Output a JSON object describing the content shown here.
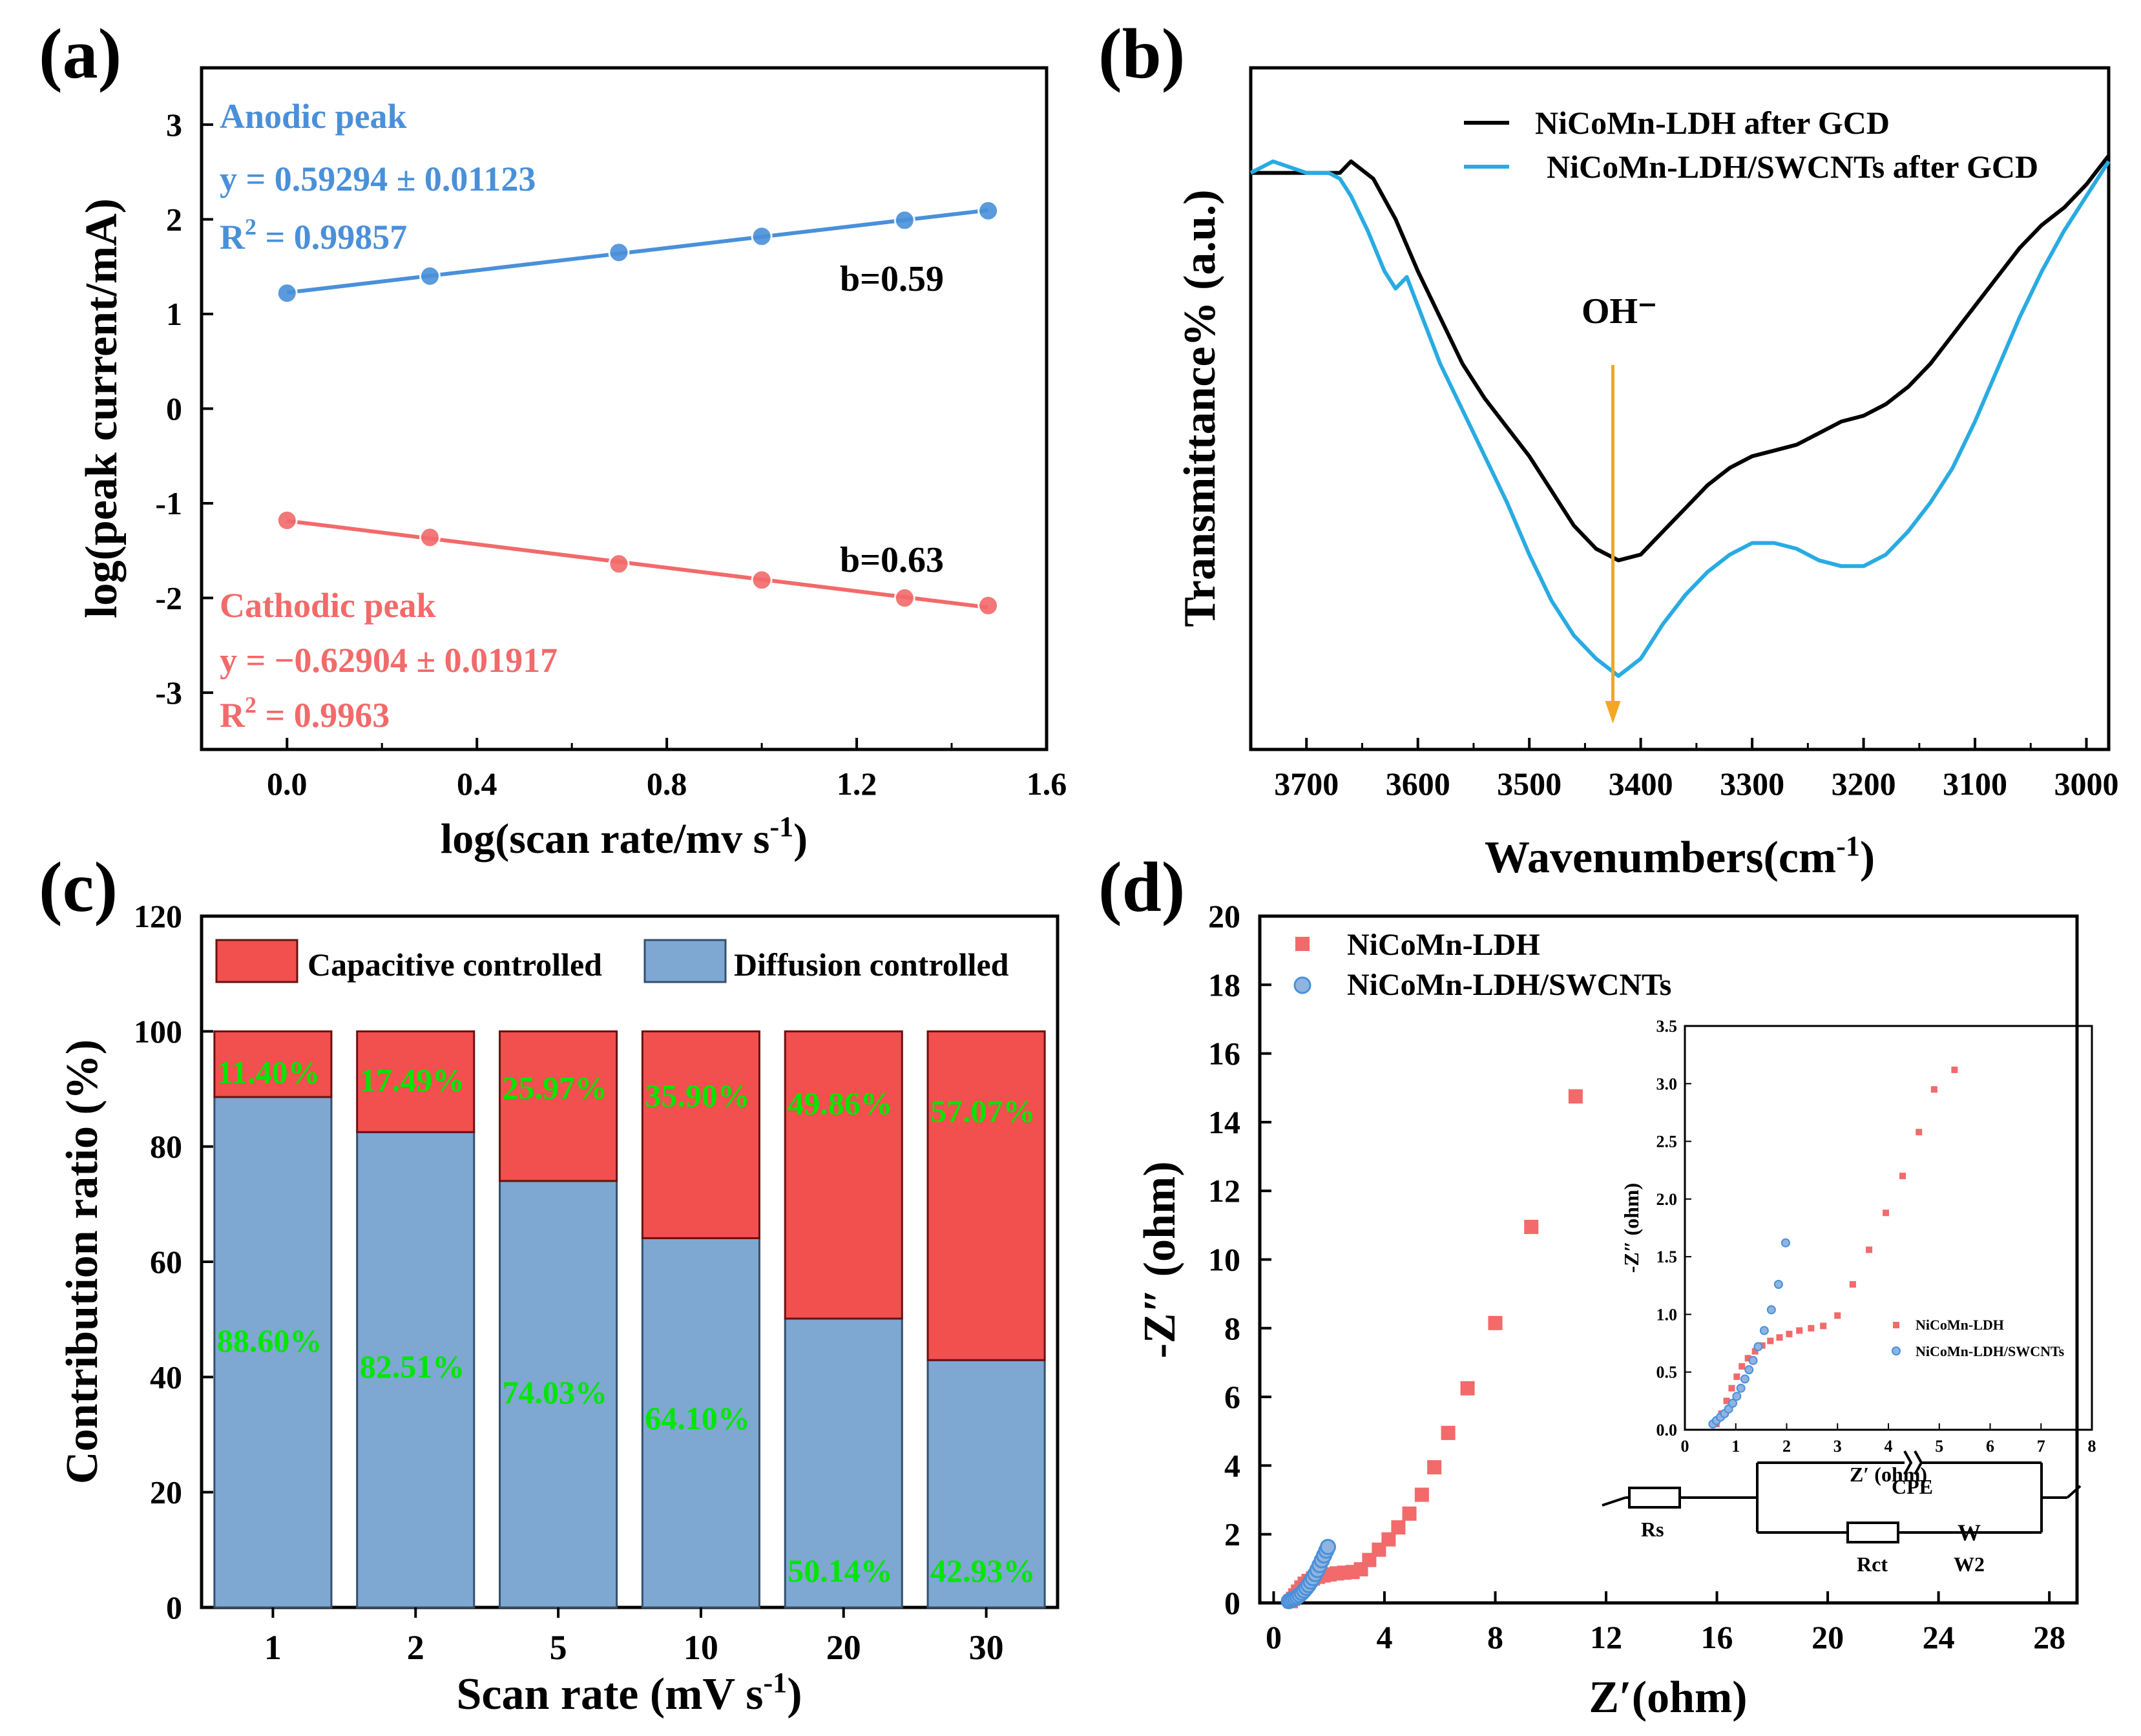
{
  "colors": {
    "blue": "#4a90d9",
    "red": "#f26a6a",
    "black": "#000000",
    "cyan": "#29abe2",
    "orange": "#f5a623",
    "green": "#00e600",
    "bar_blue": "#7ea7d2",
    "bar_red": "#f24f4f"
  },
  "chart_data": [
    {
      "panel": "(a)",
      "type": "line",
      "xlabel": "log(scan rate/mv s",
      "xlabel_sup": "-1",
      "xlabel_close": ")",
      "ylabel": "log(peak current/mA)",
      "xlim": [
        -0.18,
        1.6
      ],
      "ylim": [
        -3.6,
        3.6
      ],
      "xticks": [
        "0.0",
        "0.4",
        "0.8",
        "1.2",
        "1.6"
      ],
      "yticks": [
        "-3",
        "-2",
        "-1",
        "0",
        "1",
        "2",
        "3"
      ],
      "series": [
        {
          "name": "Anodic peak",
          "x": [
            0,
            0.301,
            0.699,
            1.0,
            1.301,
            1.477
          ],
          "y": [
            1.22,
            1.4,
            1.65,
            1.82,
            1.99,
            2.09
          ]
        },
        {
          "name": "Cathodic peak",
          "x": [
            0,
            0.301,
            0.699,
            1.0,
            1.301,
            1.477
          ],
          "y": [
            -1.18,
            -1.36,
            -1.64,
            -1.81,
            -2.0,
            -2.08
          ]
        }
      ],
      "annotations": {
        "anodic_title": "Anodic peak",
        "anodic_eq": "y = 0.59294 ± 0.01123",
        "anodic_r2": "R",
        "anodic_r2_val": " = 0.99857",
        "cathodic_title": "Cathodic peak",
        "cathodic_eq": "y = −0.62904 ± 0.01917",
        "cathodic_r2": "R",
        "cathodic_r2_val": " = 0.9963",
        "r2_sup": "2",
        "b_anodic": "b=0.59",
        "b_cathodic": "b=0.63"
      }
    },
    {
      "panel": "(b)",
      "type": "line",
      "xlabel": "Wavenumbers",
      "xlabel_unit": "(cm",
      "xlabel_sup": "-1",
      "xlabel_close": ")",
      "ylabel": "Transmittance% (a.u.)",
      "xlim": [
        3750,
        2980
      ],
      "xticks": [
        "3700",
        "3600",
        "3500",
        "3400",
        "3300",
        "3200",
        "3100",
        "3000"
      ],
      "xtick_values": [
        3700,
        3600,
        3500,
        3400,
        3300,
        3200,
        3100,
        3000
      ],
      "series": [
        {
          "name": "NiCoMn-LDH after GCD",
          "x": [
            3750,
            3720,
            3690,
            3670,
            3660,
            3640,
            3620,
            3600,
            3580,
            3560,
            3540,
            3520,
            3500,
            3480,
            3460,
            3440,
            3420,
            3400,
            3380,
            3360,
            3340,
            3320,
            3300,
            3280,
            3260,
            3240,
            3220,
            3200,
            3180,
            3160,
            3140,
            3120,
            3100,
            3080,
            3060,
            3040,
            3020,
            3000,
            2980
          ],
          "y": [
            0.93,
            0.93,
            0.93,
            0.93,
            0.95,
            0.92,
            0.85,
            0.76,
            0.68,
            0.6,
            0.54,
            0.49,
            0.44,
            0.38,
            0.32,
            0.28,
            0.26,
            0.27,
            0.31,
            0.35,
            0.39,
            0.42,
            0.44,
            0.45,
            0.46,
            0.48,
            0.5,
            0.51,
            0.53,
            0.56,
            0.6,
            0.65,
            0.7,
            0.75,
            0.8,
            0.84,
            0.87,
            0.91,
            0.96
          ]
        },
        {
          "name": "NiCoMn-LDH/SWCNTs after GCD",
          "x": [
            3750,
            3730,
            3700,
            3680,
            3670,
            3660,
            3645,
            3630,
            3620,
            3610,
            3600,
            3580,
            3560,
            3540,
            3520,
            3500,
            3480,
            3460,
            3440,
            3420,
            3400,
            3380,
            3360,
            3340,
            3320,
            3300,
            3280,
            3260,
            3240,
            3220,
            3200,
            3180,
            3160,
            3140,
            3120,
            3100,
            3080,
            3060,
            3040,
            3020,
            3000,
            2980
          ],
          "y": [
            0.93,
            0.95,
            0.93,
            0.93,
            0.92,
            0.89,
            0.83,
            0.76,
            0.73,
            0.75,
            0.7,
            0.6,
            0.52,
            0.44,
            0.36,
            0.27,
            0.19,
            0.13,
            0.09,
            0.06,
            0.09,
            0.15,
            0.2,
            0.24,
            0.27,
            0.29,
            0.29,
            0.28,
            0.26,
            0.25,
            0.25,
            0.27,
            0.31,
            0.36,
            0.42,
            0.5,
            0.59,
            0.68,
            0.76,
            0.83,
            0.89,
            0.95
          ]
        }
      ],
      "annotation": "OH⁻",
      "arrow_x": 3425
    },
    {
      "panel": "(c)",
      "type": "bar",
      "stacked": true,
      "xlabel": "Scan rate (mV s",
      "xlabel_sup": "-1",
      "xlabel_close": ")",
      "ylabel": "Contribution ratio (%)",
      "ylim": [
        0,
        120
      ],
      "yticks": [
        "0",
        "20",
        "40",
        "60",
        "80",
        "100",
        "120"
      ],
      "categories": [
        "1",
        "2",
        "5",
        "10",
        "20",
        "30"
      ],
      "series": [
        {
          "name": "Diffusion controlled",
          "values": [
            88.6,
            82.51,
            74.03,
            64.1,
            50.14,
            42.93
          ],
          "labels": [
            "88.60%",
            "82.51%",
            "74.03%",
            "64.10%",
            "50.14%",
            "42.93%"
          ]
        },
        {
          "name": "Capacitive controlled",
          "values": [
            11.4,
            17.49,
            25.97,
            35.9,
            49.86,
            57.07
          ],
          "labels": [
            "11.40%",
            "17.49%",
            "25.97%",
            "35.90%",
            "49.86%",
            "57.07%"
          ]
        }
      ]
    },
    {
      "panel": "(d)",
      "type": "scatter",
      "xlabel": "Z′(ohm)",
      "ylabel": "-Z″ (ohm)",
      "xlim": [
        -0.5,
        29
      ],
      "ylim": [
        0,
        20
      ],
      "xticks": [
        "0",
        "4",
        "8",
        "12",
        "16",
        "20",
        "24",
        "28"
      ],
      "yticks": [
        "0",
        "2",
        "4",
        "6",
        "8",
        "10",
        "12",
        "14",
        "16",
        "18",
        "20"
      ],
      "series": [
        {
          "name": "NiCoMn-LDH",
          "x": [
            0.62,
            0.7,
            0.78,
            0.88,
            1.0,
            1.12,
            1.26,
            1.42,
            1.6,
            1.8,
            2.02,
            2.28,
            2.55,
            2.85,
            3.15,
            3.45,
            3.8,
            4.15,
            4.5,
            4.9,
            5.35,
            5.8,
            6.3,
            7.0,
            8.0,
            9.3,
            10.9
          ],
          "y": [
            0.05,
            0.12,
            0.22,
            0.33,
            0.45,
            0.56,
            0.64,
            0.71,
            0.76,
            0.8,
            0.83,
            0.86,
            0.88,
            0.9,
            0.98,
            1.25,
            1.55,
            1.85,
            2.2,
            2.6,
            3.15,
            3.95,
            4.95,
            6.25,
            8.15,
            10.95,
            14.75
          ]
        },
        {
          "name": "NiCoMn-LDH/SWCNTs",
          "x": [
            0.55,
            0.62,
            0.7,
            0.78,
            0.86,
            0.94,
            1.02,
            1.1,
            1.18,
            1.26,
            1.34,
            1.42,
            1.5,
            1.58,
            1.66,
            1.74,
            1.82,
            1.9,
            1.96
          ],
          "y": [
            0.05,
            0.08,
            0.11,
            0.14,
            0.18,
            0.23,
            0.29,
            0.36,
            0.44,
            0.52,
            0.62,
            0.72,
            0.84,
            0.96,
            1.1,
            1.24,
            1.38,
            1.52,
            1.63
          ]
        }
      ],
      "inset": {
        "xlabel": "Z′ (ohm)",
        "ylabel": "-Z″ (ohm)",
        "xlim": [
          0,
          8
        ],
        "ylim": [
          0,
          3.5
        ],
        "xticks": [
          "0",
          "1",
          "2",
          "3",
          "4",
          "5",
          "6",
          "7",
          "8"
        ],
        "yticks": [
          "0.0",
          "0.5",
          "1.0",
          "1.5",
          "2.0",
          "2.5",
          "3.0",
          "3.5"
        ],
        "legend": [
          "NiCoMn-LDH",
          "NiCoMn-LDH/SWCNTs"
        ],
        "ldh_x": [
          0.62,
          0.72,
          0.82,
          0.92,
          1.02,
          1.12,
          1.24,
          1.38,
          1.52,
          1.68,
          1.86,
          2.05,
          2.25,
          2.48,
          2.72,
          3.0,
          3.3,
          3.62,
          3.95,
          4.28,
          4.6,
          4.9,
          5.3
        ],
        "ldh_y": [
          0.05,
          0.14,
          0.25,
          0.36,
          0.46,
          0.55,
          0.62,
          0.68,
          0.73,
          0.77,
          0.8,
          0.83,
          0.86,
          0.88,
          0.9,
          0.99,
          1.26,
          1.56,
          1.88,
          2.2,
          2.58,
          2.95,
          3.12
        ],
        "sw_x": [
          0.55,
          0.62,
          0.7,
          0.78,
          0.86,
          0.94,
          1.02,
          1.1,
          1.18,
          1.26,
          1.34,
          1.44,
          1.56,
          1.7,
          1.84,
          1.98
        ],
        "sw_y": [
          0.05,
          0.08,
          0.11,
          0.14,
          0.18,
          0.23,
          0.29,
          0.36,
          0.44,
          0.52,
          0.6,
          0.72,
          0.86,
          1.04,
          1.26,
          1.62
        ]
      },
      "circuit": {
        "rs": "Rs",
        "cpe": "CPE",
        "rct": "Rct",
        "w2": "W2",
        "w_symbol": "W"
      }
    }
  ],
  "panels": {
    "a": "(a)",
    "b": "(b)",
    "c": "(c)",
    "d": "(d)"
  }
}
